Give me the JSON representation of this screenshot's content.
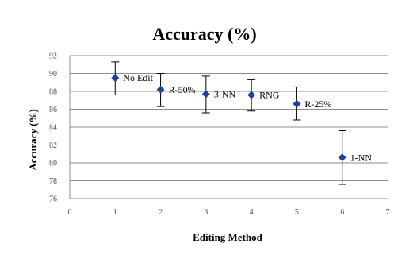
{
  "chart_data": {
    "type": "scatter",
    "title": "Accuracy (%)",
    "xlabel": "Editing Method",
    "ylabel": "Accuracy (%)",
    "xlim": [
      0,
      7
    ],
    "ylim": [
      76,
      92
    ],
    "x_ticks": [
      "0",
      "1",
      "2",
      "3",
      "4",
      "5",
      "6",
      "7"
    ],
    "y_ticks": [
      "76",
      "78",
      "80",
      "82",
      "84",
      "86",
      "88",
      "90",
      "92"
    ],
    "grid": "horizontal",
    "marker_color": "#1f3f9f",
    "series": [
      {
        "points": [
          {
            "x": 1,
            "y": 89.5,
            "err_low": 87.6,
            "err_high": 91.3,
            "label": "No Edit"
          },
          {
            "x": 2,
            "y": 88.2,
            "err_low": 86.3,
            "err_high": 90.0,
            "label": "R-50%"
          },
          {
            "x": 3,
            "y": 87.7,
            "err_low": 85.6,
            "err_high": 89.7,
            "label": "3-NN"
          },
          {
            "x": 4,
            "y": 87.6,
            "err_low": 85.8,
            "err_high": 89.3,
            "label": "RNG"
          },
          {
            "x": 5,
            "y": 86.6,
            "err_low": 84.8,
            "err_high": 88.5,
            "label": "R-25%"
          },
          {
            "x": 6,
            "y": 80.6,
            "err_low": 77.6,
            "err_high": 83.6,
            "label": "1-NN"
          }
        ]
      }
    ]
  }
}
